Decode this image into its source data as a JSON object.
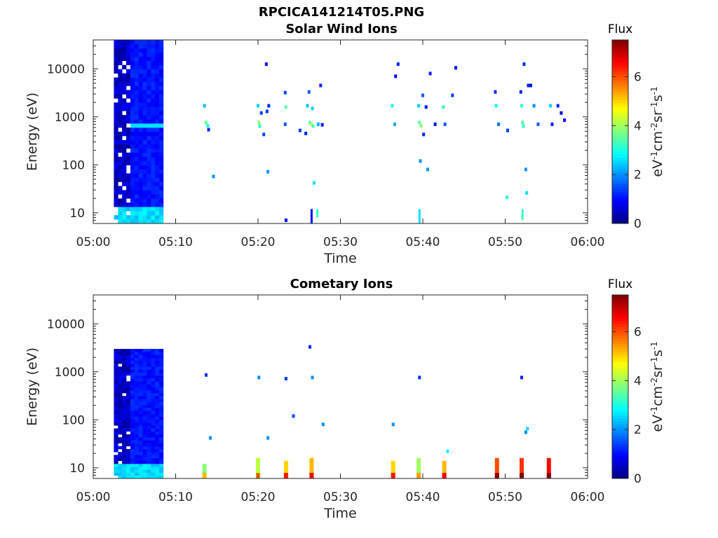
{
  "title": "RPCICA141214T05.PNG",
  "chart_data": [
    {
      "type": "heatmap",
      "title": "Solar Wind Ions",
      "xlabel": "Time",
      "ylabel": "Energy (eV)",
      "x_ticks": [
        "05:00",
        "05:10",
        "05:20",
        "05:30",
        "05:40",
        "05:50",
        "06:00"
      ],
      "x_range_minutes": [
        0,
        60
      ],
      "y_scale": "log",
      "y_range": [
        6,
        40000
      ],
      "y_ticks": [
        10,
        100,
        1000,
        10000
      ],
      "y_tick_labels": [
        "10",
        "100",
        "1000",
        "10000"
      ],
      "colorbar": {
        "label": "Flux",
        "units": "eV-1cm-2sr-1s-1",
        "range": [
          0,
          7.5
        ],
        "ticks": [
          "0",
          "2",
          "4",
          "6"
        ]
      },
      "dense_block": {
        "t_start": 2.5,
        "t_end": 8.5,
        "e_min": 6,
        "e_max": 40000,
        "mean_flux": 1.0,
        "band_energy": 730,
        "band_flux": 2.6,
        "low_energy_flux": 2.3
      },
      "patches": [
        {
          "t": 13.5,
          "e": 1700,
          "v": 2.3
        },
        {
          "t": 13.7,
          "e": 760,
          "v": 3.6
        },
        {
          "t": 13.9,
          "e": 650,
          "v": 3.0
        },
        {
          "t": 14.0,
          "e": 540,
          "v": 1.2
        },
        {
          "t": 14.6,
          "e": 57,
          "v": 2.0
        },
        {
          "t": 20.0,
          "e": 1700,
          "v": 2.5
        },
        {
          "t": 20.1,
          "e": 760,
          "v": 3.8
        },
        {
          "t": 20.2,
          "e": 640,
          "v": 3.2
        },
        {
          "t": 20.4,
          "e": 1200,
          "v": 1.4
        },
        {
          "t": 20.7,
          "e": 430,
          "v": 1.5
        },
        {
          "t": 21.0,
          "e": 12500,
          "v": 1.0
        },
        {
          "t": 21.1,
          "e": 1300,
          "v": 1.3
        },
        {
          "t": 21.2,
          "e": 72,
          "v": 2.0
        },
        {
          "t": 21.3,
          "e": 1700,
          "v": 1.2
        },
        {
          "t": 23.3,
          "e": 3200,
          "v": 1.4
        },
        {
          "t": 23.3,
          "e": 700,
          "v": 1.6
        },
        {
          "t": 23.4,
          "e": 1600,
          "v": 3.5
        },
        {
          "t": 23.4,
          "e": 7,
          "v": 1.0
        },
        {
          "t": 25.1,
          "e": 520,
          "v": 1.4
        },
        {
          "t": 25.8,
          "e": 450,
          "v": 1.2
        },
        {
          "t": 26.0,
          "e": 1700,
          "v": 2.4
        },
        {
          "t": 26.2,
          "e": 3300,
          "v": 1.6
        },
        {
          "t": 26.3,
          "e": 760,
          "v": 3.5
        },
        {
          "t": 26.5,
          "e": 690,
          "v": 4.2
        },
        {
          "t": 26.7,
          "e": 640,
          "v": 3.3
        },
        {
          "t": 26.6,
          "e": 1500,
          "v": 2.5
        },
        {
          "t": 26.8,
          "e": 42,
          "v": 2.6
        },
        {
          "t": 27.3,
          "e": 700,
          "v": 2.2
        },
        {
          "t": 27.6,
          "e": 4500,
          "v": 1.2
        },
        {
          "t": 27.8,
          "e": 680,
          "v": 1.1
        },
        {
          "t": 36.3,
          "e": 1700,
          "v": 3.0
        },
        {
          "t": 36.6,
          "e": 700,
          "v": 2.2
        },
        {
          "t": 36.7,
          "e": 7000,
          "v": 1.0
        },
        {
          "t": 37.0,
          "e": 12500,
          "v": 1.2
        },
        {
          "t": 39.5,
          "e": 1700,
          "v": 2.5
        },
        {
          "t": 39.6,
          "e": 760,
          "v": 3.5
        },
        {
          "t": 39.8,
          "e": 650,
          "v": 3.8
        },
        {
          "t": 39.7,
          "e": 120,
          "v": 2.0
        },
        {
          "t": 40.0,
          "e": 2800,
          "v": 1.6
        },
        {
          "t": 40.1,
          "e": 430,
          "v": 1.2
        },
        {
          "t": 40.4,
          "e": 1600,
          "v": 1.1
        },
        {
          "t": 40.6,
          "e": 80,
          "v": 2.0
        },
        {
          "t": 40.9,
          "e": 8000,
          "v": 1.2
        },
        {
          "t": 41.5,
          "e": 700,
          "v": 1.1
        },
        {
          "t": 42.5,
          "e": 1600,
          "v": 3.2
        },
        {
          "t": 42.7,
          "e": 700,
          "v": 1.6
        },
        {
          "t": 43.6,
          "e": 2800,
          "v": 1.4
        },
        {
          "t": 44.0,
          "e": 10500,
          "v": 1.0
        },
        {
          "t": 48.8,
          "e": 3300,
          "v": 1.2
        },
        {
          "t": 48.9,
          "e": 1700,
          "v": 2.8
        },
        {
          "t": 49.2,
          "e": 700,
          "v": 1.8
        },
        {
          "t": 50.2,
          "e": 21,
          "v": 3.0
        },
        {
          "t": 50.3,
          "e": 520,
          "v": 1.4
        },
        {
          "t": 51.9,
          "e": 3300,
          "v": 1.2
        },
        {
          "t": 52.0,
          "e": 1700,
          "v": 3.2
        },
        {
          "t": 52.1,
          "e": 760,
          "v": 3.5
        },
        {
          "t": 52.2,
          "e": 640,
          "v": 3.2
        },
        {
          "t": 52.3,
          "e": 12500,
          "v": 1.2
        },
        {
          "t": 52.5,
          "e": 80,
          "v": 2.0
        },
        {
          "t": 52.6,
          "e": 26,
          "v": 2.6
        },
        {
          "t": 52.8,
          "e": 4500,
          "v": 1.2
        },
        {
          "t": 53.1,
          "e": 4500,
          "v": 1.0
        },
        {
          "t": 53.5,
          "e": 1700,
          "v": 2.0
        },
        {
          "t": 54.0,
          "e": 700,
          "v": 1.6
        },
        {
          "t": 55.5,
          "e": 1700,
          "v": 2.5
        },
        {
          "t": 55.7,
          "e": 700,
          "v": 1.2
        },
        {
          "t": 56.4,
          "e": 1700,
          "v": 1.2
        },
        {
          "t": 56.8,
          "e": 1200,
          "v": 1.0
        },
        {
          "t": 57.2,
          "e": 850,
          "v": 1.0
        }
      ],
      "spikes": [
        {
          "t": 26.5,
          "e_min": 6,
          "e_max": 12,
          "v": 0.9
        },
        {
          "t": 27.2,
          "e_min": 8,
          "e_max": 12,
          "v": 3.2
        },
        {
          "t": 39.6,
          "e_min": 6,
          "e_max": 12,
          "v": 2.6
        },
        {
          "t": 52.1,
          "e_min": 7,
          "e_max": 12,
          "v": 3.2
        }
      ]
    },
    {
      "type": "heatmap",
      "title": "Cometary Ions",
      "xlabel": "Time",
      "ylabel": "Energy (eV)",
      "x_ticks": [
        "05:00",
        "05:10",
        "05:20",
        "05:30",
        "05:40",
        "05:50",
        "06:00"
      ],
      "x_range_minutes": [
        0,
        60
      ],
      "y_scale": "log",
      "y_range": [
        6,
        40000
      ],
      "y_ticks": [
        10,
        100,
        1000,
        10000
      ],
      "y_tick_labels": [
        "10",
        "100",
        "1000",
        "10000"
      ],
      "colorbar": {
        "label": "Flux",
        "units": "eV-1cm-2sr-1s-1",
        "range": [
          0,
          7.5
        ],
        "ticks": [
          "0",
          "2",
          "4",
          "6"
        ]
      },
      "dense_block": {
        "t_start": 2.5,
        "t_end": 8.5,
        "e_min": 6,
        "e_max": 3000,
        "mean_flux": 1.0,
        "low_energy_flux": 2.3
      },
      "patches": [
        {
          "t": 13.7,
          "e": 860,
          "v": 1.3
        },
        {
          "t": 14.2,
          "e": 42,
          "v": 2.0
        },
        {
          "t": 20.1,
          "e": 760,
          "v": 2.0
        },
        {
          "t": 21.2,
          "e": 42,
          "v": 2.0
        },
        {
          "t": 23.4,
          "e": 720,
          "v": 1.4
        },
        {
          "t": 24.3,
          "e": 120,
          "v": 1.5
        },
        {
          "t": 26.3,
          "e": 3300,
          "v": 1.2
        },
        {
          "t": 26.6,
          "e": 760,
          "v": 2.0
        },
        {
          "t": 27.9,
          "e": 80,
          "v": 2.0
        },
        {
          "t": 36.4,
          "e": 80,
          "v": 2.0
        },
        {
          "t": 39.6,
          "e": 760,
          "v": 1.3
        },
        {
          "t": 43.0,
          "e": 22,
          "v": 2.8
        },
        {
          "t": 52.0,
          "e": 760,
          "v": 1.2
        },
        {
          "t": 52.5,
          "e": 55,
          "v": 2.0
        },
        {
          "t": 52.7,
          "e": 65,
          "v": 2.5
        }
      ],
      "spikes": [
        {
          "t": 13.5,
          "e_min": 6,
          "e_max": 12,
          "v": 3.8
        },
        {
          "t": 20.0,
          "e_min": 6,
          "e_max": 16,
          "v": 4.2
        },
        {
          "t": 23.4,
          "e_min": 6,
          "e_max": 14,
          "v": 5.0
        },
        {
          "t": 26.5,
          "e_min": 6,
          "e_max": 16,
          "v": 5.2
        },
        {
          "t": 36.4,
          "e_min": 6,
          "e_max": 14,
          "v": 5.0
        },
        {
          "t": 39.5,
          "e_min": 6,
          "e_max": 16,
          "v": 4.0
        },
        {
          "t": 42.6,
          "e_min": 6,
          "e_max": 14,
          "v": 5.2
        },
        {
          "t": 49.0,
          "e_min": 6,
          "e_max": 16,
          "v": 6.0
        },
        {
          "t": 52.0,
          "e_min": 6,
          "e_max": 16,
          "v": 6.2
        },
        {
          "t": 55.3,
          "e_min": 6,
          "e_max": 16,
          "v": 6.5
        }
      ]
    }
  ]
}
